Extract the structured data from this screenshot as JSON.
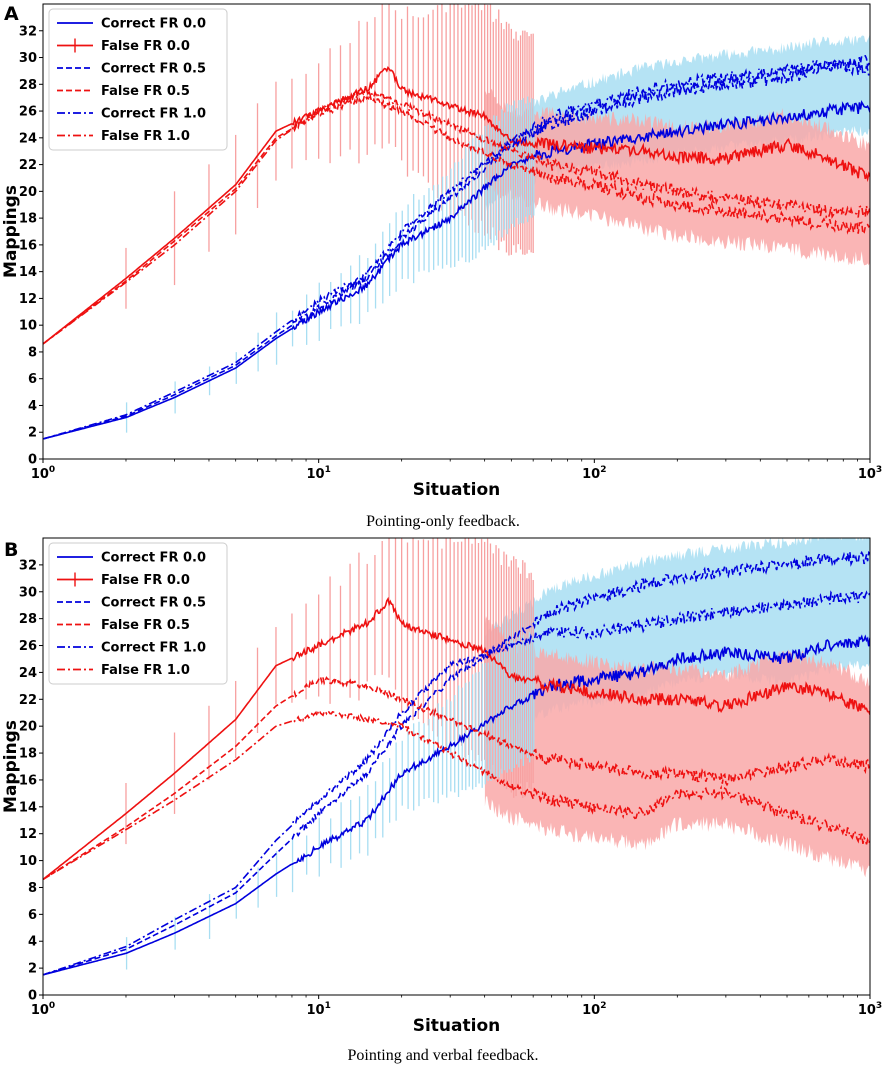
{
  "chart_data": [
    {
      "panel": "A",
      "type": "line",
      "caption": "Pointing-only feedback.",
      "xlabel": "Situation",
      "ylabel": "Mappings",
      "xscale": "log",
      "xlim": [
        1,
        1000
      ],
      "ylim": [
        0,
        34
      ],
      "y_ticks": [
        "0",
        "2",
        "4",
        "6",
        "8",
        "10",
        "12",
        "14",
        "16",
        "18",
        "20",
        "22",
        "24",
        "26",
        "28",
        "30",
        "32"
      ],
      "x_ticks": [
        {
          "base": "10",
          "exp": "0"
        },
        {
          "base": "10",
          "exp": "1"
        },
        {
          "base": "10",
          "exp": "2"
        },
        {
          "base": "10",
          "exp": "3"
        }
      ],
      "legend_position": "top-left",
      "series": [
        {
          "name": "Correct FR 0.0",
          "color": "#0000dd",
          "dash": "solid",
          "kind": "correct",
          "x": [
            1,
            2,
            3,
            5,
            7,
            10,
            15,
            20,
            30,
            50,
            70,
            100,
            150,
            200,
            300,
            500,
            700,
            1000
          ],
          "y": [
            1.5,
            3.1,
            4.6,
            6.8,
            9.0,
            11.0,
            13.0,
            16.0,
            18.0,
            22.0,
            23.0,
            23.5,
            24.0,
            24.5,
            25.0,
            25.5,
            26.0,
            26.3
          ]
        },
        {
          "name": "False FR 0.0",
          "color": "#ee1111",
          "dash": "solid",
          "kind": "false",
          "x": [
            1,
            2,
            3,
            5,
            7,
            10,
            15,
            18,
            20,
            30,
            40,
            50,
            70,
            100,
            150,
            200,
            300,
            500,
            700,
            1000
          ],
          "y": [
            8.6,
            13.5,
            16.5,
            20.5,
            24.5,
            26.0,
            27.7,
            29.3,
            27.6,
            26.4,
            25.6,
            23.7,
            23.5,
            23.2,
            23.0,
            22.5,
            22.5,
            23.5,
            22.5,
            21.0
          ]
        },
        {
          "name": "Correct FR 0.5",
          "color": "#0000dd",
          "dash": "dashed",
          "kind": "correct",
          "x": [
            1,
            2,
            3,
            5,
            7,
            10,
            15,
            20,
            30,
            50,
            70,
            100,
            150,
            200,
            300,
            500,
            700,
            1000
          ],
          "y": [
            1.5,
            3.2,
            4.8,
            7.0,
            9.2,
            11.3,
            13.5,
            16.5,
            19.5,
            23.5,
            25.0,
            26.0,
            27.0,
            27.5,
            28.0,
            28.5,
            29.2,
            29.8
          ]
        },
        {
          "name": "False FR 0.5",
          "color": "#ee1111",
          "dash": "dashed",
          "kind": "false",
          "x": [
            1,
            2,
            3,
            5,
            7,
            10,
            15,
            20,
            30,
            50,
            70,
            100,
            150,
            200,
            300,
            500,
            700,
            1000
          ],
          "y": [
            8.6,
            13.3,
            16.3,
            20.2,
            24.0,
            25.8,
            27.0,
            26.0,
            24.0,
            22.0,
            21.0,
            20.5,
            19.5,
            19.0,
            18.5,
            18.0,
            17.5,
            17.2
          ]
        },
        {
          "name": "Correct FR 1.0",
          "color": "#0000dd",
          "dash": "dashdot",
          "kind": "correct",
          "x": [
            1,
            2,
            3,
            5,
            7,
            10,
            15,
            20,
            30,
            50,
            70,
            100,
            150,
            200,
            300,
            500,
            700,
            1000
          ],
          "y": [
            1.5,
            3.3,
            5.0,
            7.2,
            9.5,
            11.8,
            13.8,
            17.0,
            20.0,
            23.8,
            25.5,
            26.5,
            27.5,
            28.0,
            28.5,
            29.0,
            29.5,
            29.0
          ]
        },
        {
          "name": "False FR 1.0",
          "color": "#ee1111",
          "dash": "dashdot",
          "kind": "false",
          "x": [
            1,
            2,
            3,
            5,
            7,
            10,
            15,
            20,
            30,
            50,
            70,
            100,
            150,
            200,
            300,
            500,
            700,
            1000
          ],
          "y": [
            8.6,
            13.2,
            16.0,
            20.0,
            23.8,
            26.0,
            27.5,
            26.5,
            25.0,
            23.0,
            22.0,
            21.5,
            20.5,
            20.0,
            19.5,
            19.0,
            18.5,
            18.5
          ]
        }
      ]
    },
    {
      "panel": "B",
      "type": "line",
      "caption": "Pointing and verbal feedback.",
      "xlabel": "Situation",
      "ylabel": "Mappings",
      "xscale": "log",
      "xlim": [
        1,
        1000
      ],
      "ylim": [
        0,
        34
      ],
      "y_ticks": [
        "0",
        "2",
        "4",
        "6",
        "8",
        "10",
        "12",
        "14",
        "16",
        "18",
        "20",
        "22",
        "24",
        "26",
        "28",
        "30",
        "32"
      ],
      "x_ticks": [
        {
          "base": "10",
          "exp": "0"
        },
        {
          "base": "10",
          "exp": "1"
        },
        {
          "base": "10",
          "exp": "2"
        },
        {
          "base": "10",
          "exp": "3"
        }
      ],
      "legend_position": "top-left",
      "series": [
        {
          "name": "Correct FR 0.0",
          "color": "#0000dd",
          "dash": "solid",
          "kind": "correct",
          "x": [
            1,
            2,
            3,
            5,
            7,
            10,
            15,
            20,
            30,
            50,
            70,
            100,
            150,
            200,
            300,
            500,
            700,
            1000
          ],
          "y": [
            1.5,
            3.1,
            4.6,
            6.8,
            9.0,
            11.0,
            13.0,
            16.5,
            18.5,
            21.5,
            23.0,
            23.5,
            24.0,
            25.0,
            25.5,
            25.0,
            26.0,
            26.3
          ]
        },
        {
          "name": "False FR 0.0",
          "color": "#ee1111",
          "dash": "solid",
          "kind": "false",
          "x": [
            1,
            2,
            3,
            5,
            7,
            10,
            15,
            18,
            20,
            30,
            40,
            50,
            70,
            100,
            150,
            200,
            300,
            500,
            700,
            1000
          ],
          "y": [
            8.6,
            13.5,
            16.5,
            20.5,
            24.5,
            26.0,
            27.7,
            29.3,
            27.6,
            26.4,
            25.6,
            23.7,
            23.0,
            22.5,
            22.0,
            22.0,
            21.5,
            23.0,
            22.5,
            21.0
          ]
        },
        {
          "name": "Correct FR 0.5",
          "color": "#0000dd",
          "dash": "dashed",
          "kind": "correct",
          "x": [
            1,
            2,
            3,
            5,
            7,
            10,
            15,
            20,
            30,
            50,
            70,
            100,
            150,
            200,
            300,
            500,
            700,
            1000
          ],
          "y": [
            1.5,
            3.4,
            5.2,
            7.6,
            10.5,
            13.5,
            16.5,
            20.0,
            23.5,
            26.5,
            28.5,
            29.5,
            30.5,
            31.0,
            31.5,
            32.0,
            32.5,
            32.5
          ]
        },
        {
          "name": "False FR 0.5",
          "color": "#ee1111",
          "dash": "dashed",
          "kind": "false",
          "x": [
            1,
            2,
            3,
            5,
            7,
            10,
            15,
            20,
            30,
            50,
            70,
            100,
            150,
            200,
            300,
            500,
            700,
            1000
          ],
          "y": [
            8.6,
            12.5,
            15.0,
            18.5,
            21.5,
            23.5,
            23.0,
            22.0,
            20.5,
            18.5,
            17.5,
            17.0,
            16.5,
            16.5,
            16.0,
            17.0,
            17.5,
            17.0
          ]
        },
        {
          "name": "Correct FR 1.0",
          "color": "#0000dd",
          "dash": "dashdot",
          "kind": "correct",
          "x": [
            1,
            2,
            3,
            5,
            7,
            10,
            15,
            20,
            30,
            50,
            70,
            100,
            150,
            200,
            300,
            500,
            700,
            1000
          ],
          "y": [
            1.5,
            3.6,
            5.6,
            8.0,
            11.5,
            14.5,
            17.5,
            21.0,
            24.5,
            26.0,
            27.0,
            27.0,
            27.5,
            28.0,
            28.5,
            29.0,
            29.5,
            29.5
          ]
        },
        {
          "name": "False FR 1.0",
          "color": "#ee1111",
          "dash": "dashdot",
          "kind": "false",
          "x": [
            1,
            2,
            3,
            5,
            7,
            10,
            15,
            20,
            30,
            50,
            70,
            100,
            150,
            200,
            300,
            500,
            700,
            1000
          ],
          "y": [
            8.6,
            12.3,
            14.5,
            17.5,
            20.0,
            21.0,
            20.5,
            20.0,
            18.0,
            15.5,
            14.5,
            14.0,
            13.5,
            15.0,
            15.0,
            13.5,
            12.5,
            11.5
          ]
        }
      ]
    }
  ]
}
